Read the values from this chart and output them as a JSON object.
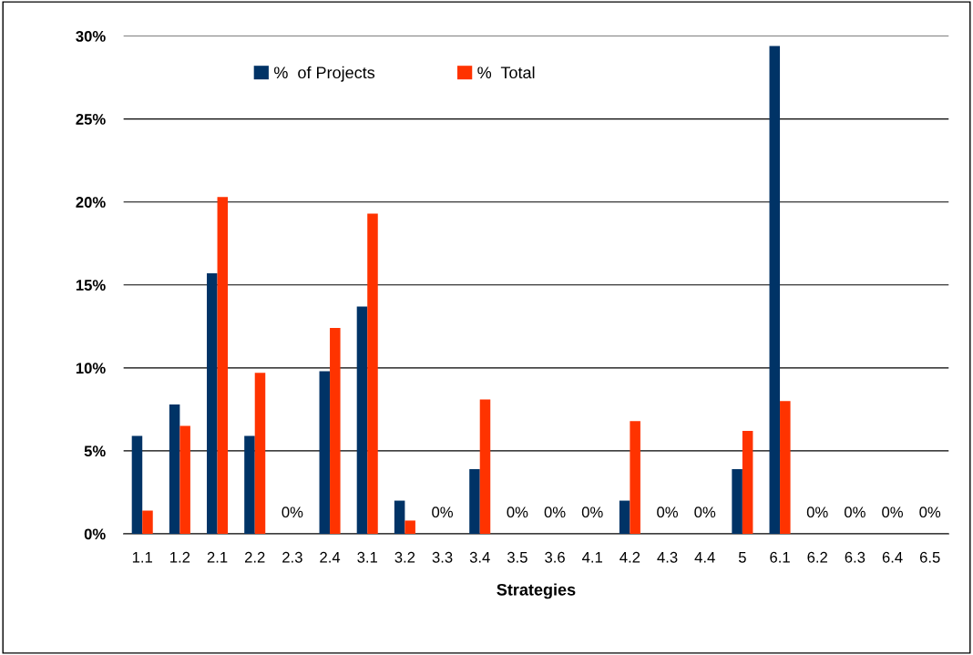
{
  "chart_data": {
    "type": "bar",
    "xlabel": "Strategies",
    "categories": [
      "1.1",
      "1.2",
      "2.1",
      "2.2",
      "2.3",
      "2.4",
      "3.1",
      "3.2",
      "3.3",
      "3.4",
      "3.5",
      "3.6",
      "4.1",
      "4.2",
      "4.3",
      "4.4",
      "5",
      "6.1",
      "6.2",
      "6.3",
      "6.4",
      "6.5"
    ],
    "series": [
      {
        "name": "%  of Projects",
        "color": "#003366",
        "values": [
          5.9,
          7.8,
          15.7,
          5.9,
          0,
          9.8,
          13.7,
          2.0,
          0,
          3.9,
          0,
          0,
          0,
          2.0,
          0,
          0,
          3.9,
          29.4,
          0,
          0,
          0,
          0
        ],
        "value_labels": [
          null,
          null,
          null,
          null,
          "0%",
          null,
          null,
          null,
          "0%",
          null,
          "0%",
          "0%",
          "0%",
          null,
          "0%",
          "0%",
          null,
          null,
          "0%",
          "0%",
          "0%",
          "0%"
        ]
      },
      {
        "name": "%  Total",
        "color": "#ff3300",
        "values": [
          1.4,
          6.5,
          20.3,
          9.7,
          0,
          12.4,
          19.3,
          0.8,
          0,
          8.1,
          0,
          0,
          0,
          6.8,
          0,
          0,
          6.2,
          8.0,
          0,
          0,
          0,
          0
        ]
      }
    ],
    "ylim": [
      0,
      30
    ],
    "yticks": [
      {
        "value": 0,
        "label": "0%"
      },
      {
        "value": 5,
        "label": "5%"
      },
      {
        "value": 10,
        "label": "10%"
      },
      {
        "value": 15,
        "label": "15%"
      },
      {
        "value": 20,
        "label": "20%"
      },
      {
        "value": 25,
        "label": "25%"
      },
      {
        "value": 30,
        "label": "30%"
      }
    ],
    "grid": "y",
    "legend": "top left"
  }
}
